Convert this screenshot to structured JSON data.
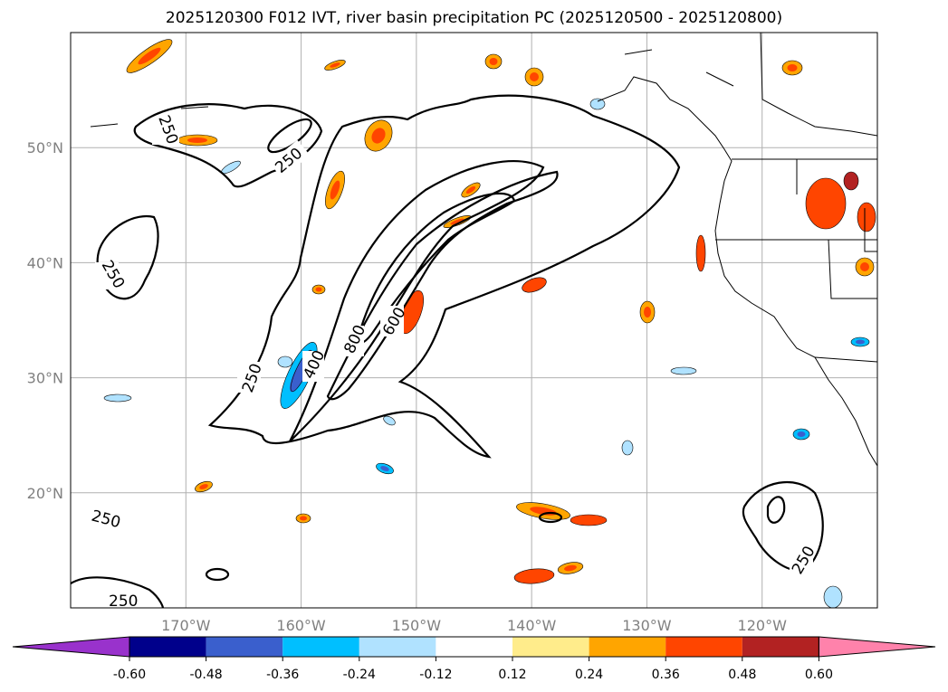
{
  "title": "2025120300 F012 IVT, river basin precipitation PC (2025120500 - 2025120800)",
  "map": {
    "lon_range": [
      -180,
      -110
    ],
    "lat_range": [
      10,
      60
    ],
    "lon_ticks": [
      {
        "value": -170,
        "label": "170°W"
      },
      {
        "value": -160,
        "label": "160°W"
      },
      {
        "value": -150,
        "label": "150°W"
      },
      {
        "value": -140,
        "label": "140°W"
      },
      {
        "value": -130,
        "label": "130°W"
      },
      {
        "value": -120,
        "label": "120°W"
      }
    ],
    "lat_ticks": [
      {
        "value": 50,
        "label": "50°N"
      },
      {
        "value": 40,
        "label": "40°N"
      },
      {
        "value": 30,
        "label": "30°N"
      },
      {
        "value": 20,
        "label": "20°N"
      }
    ],
    "contour_labels": [
      "250",
      "250",
      "250",
      "250",
      "250",
      "250",
      "400",
      "600",
      "800"
    ],
    "grid": true
  },
  "colorbar": {
    "colors": [
      "#9932cc",
      "#00008b",
      "#3a5fcd",
      "#00bfff",
      "#b0e2ff",
      "#ffffff",
      "#ffec8b",
      "#ffa500",
      "#ff4500",
      "#b22222",
      "#ff82ab"
    ],
    "tick_labels": [
      "-0.60",
      "-0.48",
      "-0.36",
      "-0.24",
      "-0.12",
      "0.12",
      "0.24",
      "0.36",
      "0.48",
      "0.60"
    ],
    "extend": "both"
  }
}
